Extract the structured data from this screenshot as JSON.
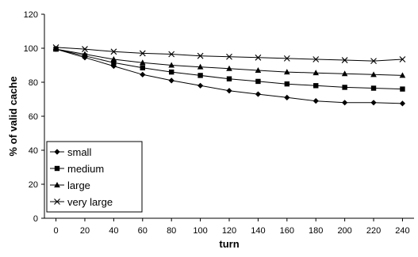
{
  "chart_data": {
    "type": "line",
    "title": "",
    "xlabel": "turn",
    "ylabel": "% of valid cache",
    "x": [
      0,
      20,
      40,
      60,
      80,
      100,
      120,
      140,
      160,
      180,
      200,
      220,
      240
    ],
    "xlim": [
      -8,
      248
    ],
    "ylim": [
      0,
      120
    ],
    "xticks": [
      0,
      20,
      40,
      60,
      80,
      100,
      120,
      140,
      160,
      180,
      200,
      220,
      240
    ],
    "yticks": [
      0,
      20,
      40,
      60,
      80,
      100,
      120
    ],
    "grid": false,
    "legend_position": "bottom-left",
    "series": [
      {
        "name": "small",
        "marker": "diamond",
        "values": [
          99.5,
          94.5,
          89.5,
          84.5,
          81,
          78,
          75,
          73,
          71,
          69,
          68,
          68,
          67.5
        ]
      },
      {
        "name": "medium",
        "marker": "square",
        "values": [
          99.5,
          95.5,
          91.5,
          88.5,
          86,
          84,
          82,
          80.5,
          79,
          78,
          77,
          76.5,
          76
        ]
      },
      {
        "name": "large",
        "marker": "triangle",
        "values": [
          99.5,
          96.5,
          93.5,
          91.5,
          90,
          89,
          88,
          87,
          86,
          85.5,
          85,
          84.5,
          84
        ]
      },
      {
        "name": "very large",
        "marker": "x",
        "values": [
          100.5,
          99.5,
          98,
          97,
          96.5,
          95.5,
          95,
          94.5,
          94,
          93.5,
          93,
          92.5,
          93.5
        ]
      }
    ]
  }
}
